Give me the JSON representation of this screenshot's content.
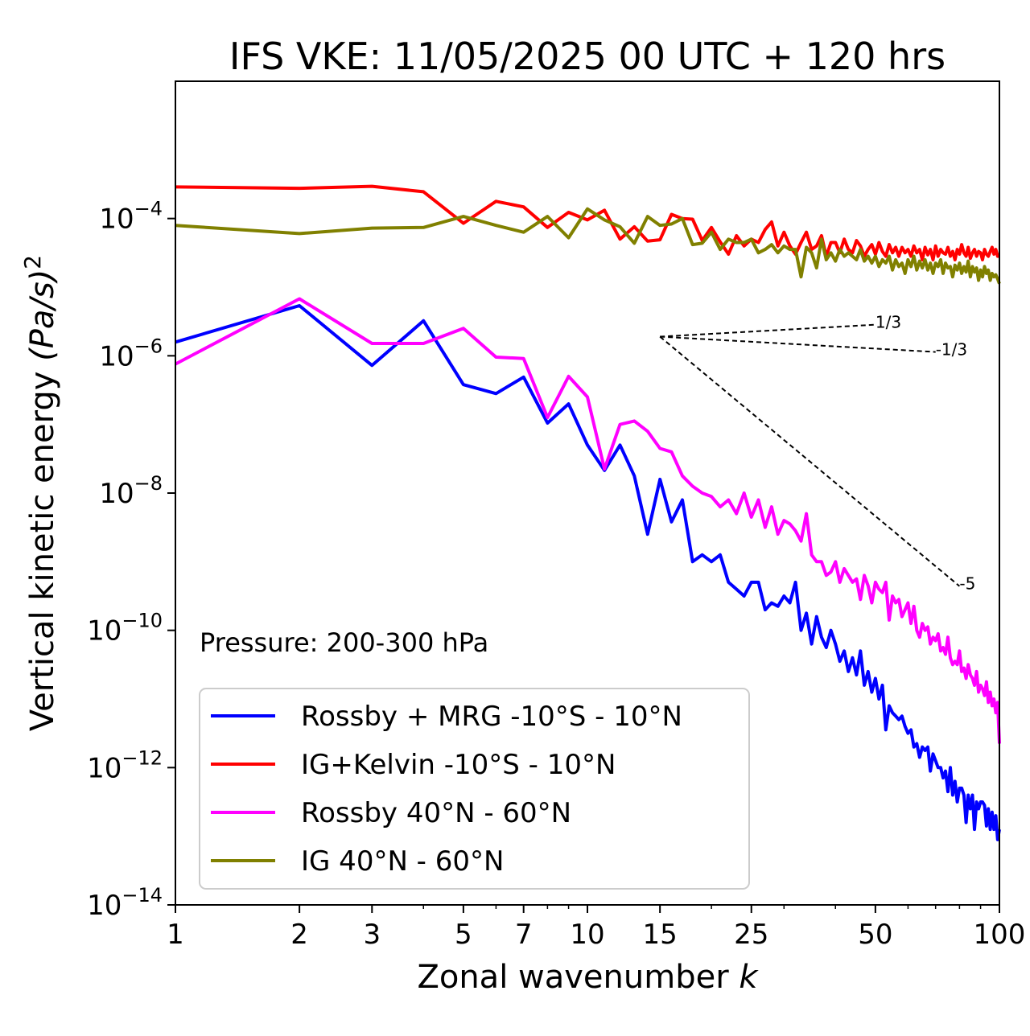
{
  "chart_data": {
    "type": "line",
    "title": "IFS VKE: 11/05/2025 00 UTC + 120 hrs",
    "xlabel": "Zonal wavenumber",
    "xlabel_var": "k",
    "ylabel": "Vertical kinetic energy",
    "ylabel_unit": "(Pa/s)",
    "ylabel_exp": "2",
    "xscale": "log",
    "yscale": "log",
    "xlim": [
      1,
      100
    ],
    "ylim": [
      1e-14,
      0.01
    ],
    "x_ticks": [
      1,
      2,
      3,
      5,
      7,
      10,
      15,
      25,
      50,
      100
    ],
    "x_tick_labels": [
      "1",
      "2",
      "3",
      "5",
      "7",
      "10",
      "15",
      "25",
      "50",
      "100"
    ],
    "y_ticks": [
      1e-14,
      1e-12,
      1e-10,
      1e-08,
      1e-06,
      0.0001
    ],
    "y_tick_base": "10",
    "y_tick_exponents": [
      "−14",
      "−12",
      "−10",
      "−8",
      "−6",
      "−4"
    ],
    "grid": false,
    "legend_position": "bottom-left",
    "annotation": "Pressure: 200-300 hPa",
    "reference_slopes": [
      {
        "label": "1/3",
        "slope": 0.3333,
        "x0": 15,
        "y0": 1.9e-06,
        "x1": 50
      },
      {
        "label": "-1/3",
        "slope": -0.3333,
        "x0": 15,
        "y0": 1.9e-06,
        "x1": 70
      },
      {
        "label": "-5",
        "slope": -5,
        "x0": 15,
        "y0": 1.9e-06,
        "x1": 80
      }
    ],
    "series": [
      {
        "name": "Rossby + MRG -10°S - 10°N",
        "color": "#0000ff",
        "logy": [
          -5.8,
          -5.27,
          -6.14,
          -5.49,
          -6.42,
          -6.55,
          -6.31,
          -6.98,
          -6.7,
          -7.3,
          -7.67,
          -7.3,
          -7.75,
          -8.6,
          -7.8,
          -8.42,
          -8.1,
          -9.0,
          -8.9,
          -9.0,
          -8.9,
          -9.3,
          -9.4,
          -9.5,
          -9.3,
          -9.3,
          -9.7,
          -9.6,
          -9.65,
          -9.5,
          -9.6,
          -9.3,
          -10.0,
          -9.75,
          -10.2,
          -9.8,
          -10.1,
          -10.25,
          -10.0,
          -10.2,
          -10.45,
          -10.3,
          -10.6,
          -10.4,
          -10.65,
          -10.3,
          -10.8,
          -10.6,
          -10.9,
          -10.7,
          -11.0,
          -10.8,
          -11.45,
          -11.1,
          -11.2,
          -11.25,
          -11.3,
          -11.25,
          -11.4,
          -11.5,
          -11.45,
          -11.7,
          -11.65,
          -11.85,
          -11.7,
          -11.75,
          -11.7,
          -12.05,
          -11.8,
          -11.9,
          -12.0,
          -12.0,
          -12.15,
          -12.05,
          -12.35,
          -12.0,
          -12.4,
          -12.2,
          -12.5,
          -12.3,
          -12.3,
          -12.4,
          -12.8,
          -12.4,
          -12.6,
          -12.4,
          -12.9,
          -12.5,
          -12.6,
          -12.5,
          -12.5,
          -12.55,
          -12.85,
          -12.6,
          -12.9,
          -12.65,
          -12.9,
          -12.7,
          -13.05,
          -12.9
        ]
      },
      {
        "name": "IG+Kelvin -10°S - 10°N",
        "color": "#ff0000",
        "logy": [
          -3.54,
          -3.56,
          -3.53,
          -3.61,
          -4.07,
          -3.75,
          -3.83,
          -4.13,
          -3.91,
          -4.02,
          -3.88,
          -4.3,
          -4.12,
          -4.33,
          -4.31,
          -3.94,
          -4.0,
          -4.01,
          -4.32,
          -4.13,
          -4.34,
          -4.52,
          -4.25,
          -4.4,
          -4.3,
          -4.35,
          -4.16,
          -4.05,
          -4.4,
          -4.2,
          -4.4,
          -4.52,
          -4.35,
          -4.2,
          -4.45,
          -4.4,
          -4.25,
          -4.55,
          -4.35,
          -4.35,
          -4.5,
          -4.3,
          -4.45,
          -4.5,
          -4.32,
          -4.4,
          -4.55,
          -4.45,
          -4.38,
          -4.52,
          -4.35,
          -4.48,
          -4.55,
          -4.38,
          -4.5,
          -4.42,
          -4.55,
          -4.42,
          -4.5,
          -4.45,
          -4.55,
          -4.4,
          -4.5,
          -4.45,
          -4.6,
          -4.42,
          -4.53,
          -4.45,
          -4.6,
          -4.4,
          -4.55,
          -4.45,
          -4.5,
          -4.52,
          -4.42,
          -4.55,
          -4.48,
          -4.6,
          -4.45,
          -4.52,
          -4.38,
          -4.5,
          -4.55,
          -4.42,
          -4.58,
          -4.5,
          -4.45,
          -4.55,
          -4.48,
          -4.5,
          -4.6,
          -4.45,
          -4.52,
          -4.55,
          -4.48,
          -4.42,
          -4.52,
          -4.45,
          -4.55,
          -4.55
        ]
      },
      {
        "name": "Rossby 40°N - 60°N",
        "color": "#ff00ff",
        "logy": [
          -6.12,
          -5.17,
          -5.82,
          -5.82,
          -5.6,
          -6.02,
          -6.04,
          -6.9,
          -6.3,
          -6.6,
          -7.65,
          -7.0,
          -6.95,
          -7.1,
          -7.35,
          -7.4,
          -7.75,
          -7.9,
          -8.0,
          -8.05,
          -8.2,
          -8.1,
          -8.3,
          -8.0,
          -8.35,
          -8.1,
          -8.5,
          -8.2,
          -8.6,
          -8.4,
          -8.45,
          -8.55,
          -8.7,
          -8.3,
          -8.9,
          -9.0,
          -9.0,
          -9.2,
          -9.15,
          -9.0,
          -9.3,
          -9.1,
          -9.2,
          -9.3,
          -9.25,
          -9.55,
          -9.2,
          -9.35,
          -9.6,
          -9.3,
          -9.4,
          -9.45,
          -9.3,
          -9.85,
          -9.5,
          -9.6,
          -9.55,
          -9.8,
          -9.7,
          -9.6,
          -9.9,
          -9.65,
          -10.0,
          -10.1,
          -9.9,
          -10.0,
          -9.95,
          -10.2,
          -10.1,
          -10.15,
          -10.05,
          -10.3,
          -10.25,
          -10.35,
          -10.1,
          -10.4,
          -10.5,
          -10.45,
          -10.5,
          -10.3,
          -10.6,
          -10.55,
          -10.7,
          -10.5,
          -10.65,
          -10.7,
          -10.8,
          -10.6,
          -10.9,
          -10.8,
          -10.85,
          -10.95,
          -10.75,
          -11.05,
          -10.9,
          -11.1,
          -11.0,
          -11.2,
          -11.05,
          -11.65
        ]
      },
      {
        "name": "IG 40°N - 60°N",
        "color": "#808000",
        "logy": [
          -4.1,
          -4.22,
          -4.14,
          -4.13,
          -3.97,
          -4.1,
          -4.2,
          -3.97,
          -4.28,
          -3.86,
          -4.02,
          -4.12,
          -4.36,
          -3.97,
          -4.1,
          -4.08,
          -4.0,
          -4.38,
          -4.36,
          -4.2,
          -4.45,
          -4.3,
          -4.35,
          -4.35,
          -4.3,
          -4.5,
          -4.45,
          -4.38,
          -4.5,
          -4.4,
          -4.45,
          -4.45,
          -4.85,
          -4.42,
          -4.5,
          -4.72,
          -4.3,
          -4.6,
          -4.5,
          -4.62,
          -4.45,
          -4.55,
          -4.5,
          -4.55,
          -4.6,
          -4.45,
          -4.62,
          -4.55,
          -4.65,
          -4.55,
          -4.7,
          -4.6,
          -4.65,
          -4.55,
          -4.75,
          -4.6,
          -4.7,
          -4.65,
          -4.8,
          -4.6,
          -4.7,
          -4.55,
          -4.75,
          -4.62,
          -4.72,
          -4.6,
          -4.75,
          -4.65,
          -4.8,
          -4.65,
          -4.7,
          -4.6,
          -4.8,
          -4.65,
          -4.72,
          -4.7,
          -4.85,
          -4.68,
          -4.75,
          -4.65,
          -4.8,
          -4.7,
          -4.78,
          -4.62,
          -4.85,
          -4.7,
          -4.78,
          -4.72,
          -4.9,
          -4.75,
          -4.85,
          -4.7,
          -4.8,
          -4.75,
          -4.9,
          -4.8,
          -4.85,
          -4.82,
          -4.88,
          -4.95
        ]
      }
    ]
  }
}
